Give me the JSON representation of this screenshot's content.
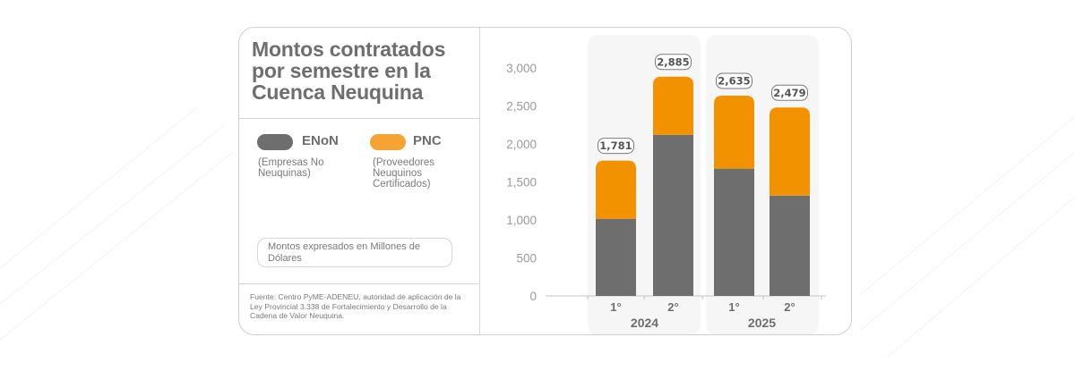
{
  "title": "Montos contratados por semestre en la Cuenca Neuquina",
  "legend": [
    {
      "key": "ENoN",
      "label": "ENoN",
      "description": "(Empresas No Neuquinas)",
      "color": "#6f6e6e"
    },
    {
      "key": "PNC",
      "label": "PNC",
      "description": "(Proveedores Neuquinos Certificados)",
      "color": "#f39200"
    }
  ],
  "units_note": "Montos expresados en Millones de Dólares",
  "source": "Fuente: Centro PyME-ADENEU, autoridad de aplicación de la Ley Provincial 3.338 de Fortalecimiento y Desarrollo de la Cadena de Valor Neuquina.",
  "chart_data": {
    "type": "bar",
    "stacked": true,
    "title": "Montos contratados por semestre en la Cuenca Neuquina",
    "xlabel": "",
    "ylabel": "",
    "ylim": [
      0,
      3000
    ],
    "yticks": [
      0,
      500,
      1000,
      1500,
      2000,
      2500,
      3000
    ],
    "ytick_labels": [
      "0",
      "500",
      "1,000",
      "1,500",
      "2,000",
      "2,500",
      "3,000"
    ],
    "grid": false,
    "legend_position": "left-panel",
    "groups": [
      {
        "label": "2024",
        "categories": [
          "1°",
          "2°"
        ]
      },
      {
        "label": "2025",
        "categories": [
          "1°",
          "2°"
        ]
      }
    ],
    "categories": [
      "2024 1°",
      "2024 2°",
      "2025 1°",
      "2025 2°"
    ],
    "series": [
      {
        "name": "ENoN",
        "color": "#6f6e6e",
        "values": [
          1015,
          2120,
          1675,
          1320
        ]
      },
      {
        "name": "PNC",
        "color": "#f39200",
        "values": [
          766,
          765,
          960,
          1159
        ]
      }
    ],
    "totals": [
      1781,
      2885,
      2635,
      2479
    ],
    "total_labels": [
      "1,781",
      "2,885",
      "2,635",
      "2,479"
    ]
  }
}
